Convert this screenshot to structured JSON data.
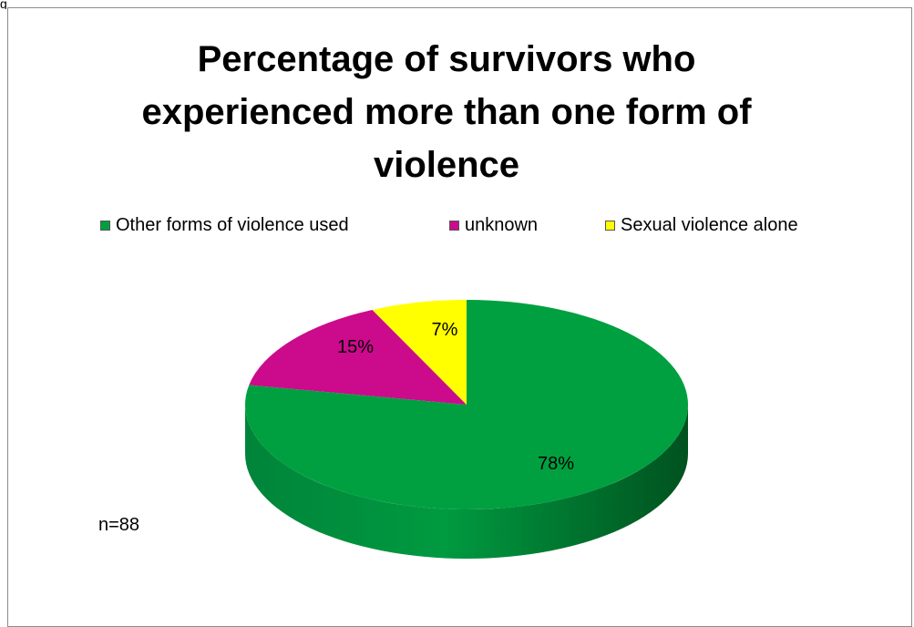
{
  "chart_data": {
    "type": "pie",
    "title": "Percentage of survivors who experienced more than one form of violence",
    "slices": [
      {
        "label": "Other forms of violence used",
        "value": 78,
        "value_label": "78%",
        "color": "#00a040",
        "side_color": "#006e2b"
      },
      {
        "label": "unknown",
        "value": 15,
        "value_label": "15%",
        "color": "#cc0a8c",
        "side_color": "#8a0660"
      },
      {
        "label": "Sexual violence alone",
        "value": 7,
        "value_label": "7%",
        "color": "#ffff00",
        "side_color": "#b5b500"
      }
    ],
    "legend_position": "top",
    "style": "3d",
    "note": "n=88"
  },
  "fragment_text": "g"
}
